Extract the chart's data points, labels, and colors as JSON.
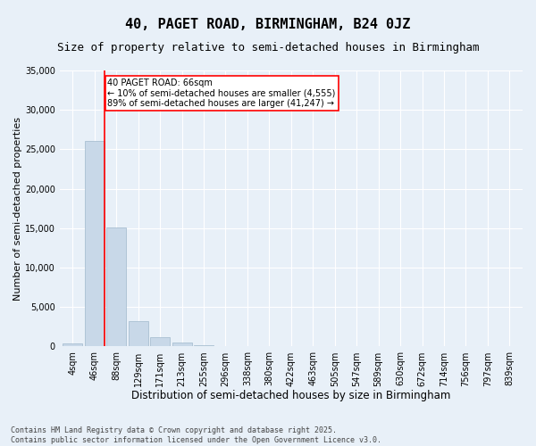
{
  "title": "40, PAGET ROAD, BIRMINGHAM, B24 0JZ",
  "subtitle": "Size of property relative to semi-detached houses in Birmingham",
  "xlabel": "Distribution of semi-detached houses by size in Birmingham",
  "ylabel": "Number of semi-detached properties",
  "categories": [
    "4sqm",
    "46sqm",
    "88sqm",
    "129sqm",
    "171sqm",
    "213sqm",
    "255sqm",
    "296sqm",
    "338sqm",
    "380sqm",
    "422sqm",
    "463sqm",
    "505sqm",
    "547sqm",
    "589sqm",
    "630sqm",
    "672sqm",
    "714sqm",
    "756sqm",
    "797sqm",
    "839sqm"
  ],
  "values": [
    350,
    26100,
    15100,
    3200,
    1200,
    450,
    200,
    0,
    0,
    0,
    0,
    0,
    0,
    0,
    0,
    0,
    0,
    0,
    0,
    0,
    0
  ],
  "bar_color": "#c8d8e8",
  "bar_edgecolor": "#a0b8cc",
  "vline_x_idx": 1.45,
  "vline_color": "red",
  "annotation_text": "40 PAGET ROAD: 66sqm\n← 10% of semi-detached houses are smaller (4,555)\n89% of semi-detached houses are larger (41,247) →",
  "annotation_box_color": "white",
  "annotation_box_edgecolor": "red",
  "ylim": [
    0,
    35000
  ],
  "yticks": [
    0,
    5000,
    10000,
    15000,
    20000,
    25000,
    30000,
    35000
  ],
  "background_color": "#e8f0f8",
  "plot_background": "#e8f0f8",
  "grid_color": "white",
  "footer": "Contains HM Land Registry data © Crown copyright and database right 2025.\nContains public sector information licensed under the Open Government Licence v3.0.",
  "title_fontsize": 11,
  "subtitle_fontsize": 9,
  "xlabel_fontsize": 8.5,
  "ylabel_fontsize": 8,
  "tick_fontsize": 7,
  "annotation_fontsize": 7,
  "footer_fontsize": 6
}
